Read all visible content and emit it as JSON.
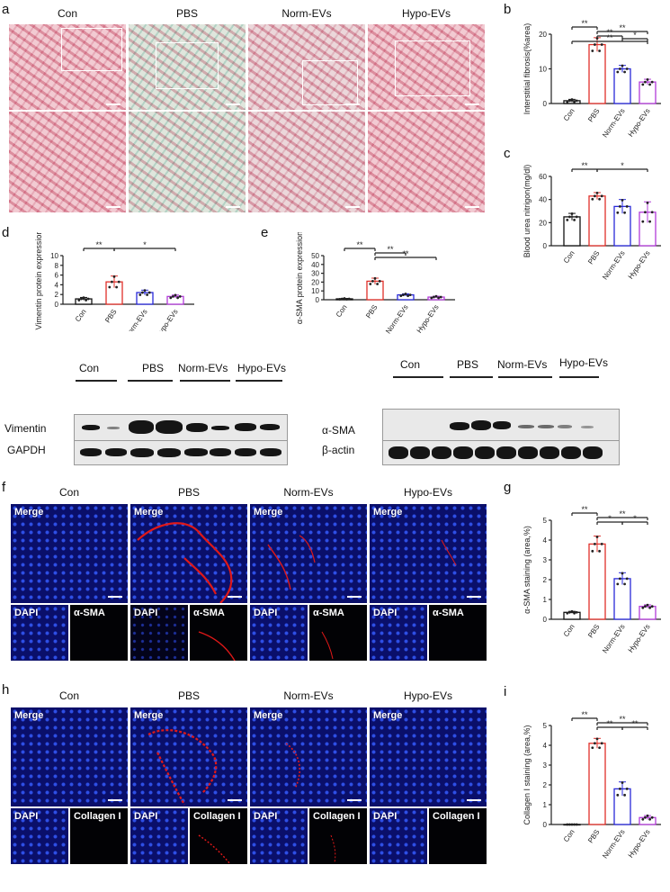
{
  "panel_letters": {
    "a": "a",
    "b": "b",
    "c": "c",
    "d": "d",
    "e": "e",
    "f": "f",
    "g": "g",
    "h": "h",
    "i": "i"
  },
  "groups": [
    "Con",
    "PBS",
    "Norm-EVs",
    "Hypo-EVs"
  ],
  "fluor": {
    "merge": "Merge",
    "dapi": "DAPI",
    "asma": "α-SMA",
    "col": "Collagen I"
  },
  "blot_left": {
    "row1": "Vimentin",
    "row2": "GAPDH"
  },
  "blot_right": {
    "row1": "α-SMA",
    "row2": "β-actin"
  },
  "colors": {
    "con": "#111111",
    "pbs": "#e0302a",
    "norm": "#2a2ad8",
    "hypo": "#b23bd8"
  },
  "chart_data": [
    {
      "id": "b",
      "type": "bar",
      "categories": [
        "Con",
        "PBS",
        "Norm-EVs",
        "Hypo-EVs"
      ],
      "values": [
        0.8,
        17,
        10,
        6.2
      ],
      "errors": [
        0.4,
        2,
        1,
        0.8
      ],
      "ylabel": "Interstitial fibrosis(%area)",
      "ylim": [
        0,
        20
      ],
      "yticks": [
        0,
        10,
        20
      ],
      "sig": [
        "**",
        "**",
        "**",
        "*",
        "**"
      ]
    },
    {
      "id": "c",
      "type": "bar",
      "categories": [
        "Con",
        "PBS",
        "Norm-EVs",
        "Hypo-EVs"
      ],
      "values": [
        25,
        43,
        34,
        29
      ],
      "errors": [
        3,
        3,
        6,
        9
      ],
      "ylabel": "Blood urea nitrigon(mg/dl)",
      "ylim": [
        0,
        60
      ],
      "yticks": [
        0,
        20,
        40,
        60
      ],
      "sig": [
        "**",
        "*"
      ]
    },
    {
      "id": "d",
      "type": "bar",
      "categories": [
        "Con",
        "PBS",
        "Norm-EVs",
        "Hypo-EVs"
      ],
      "values": [
        1.1,
        4.6,
        2.4,
        1.6
      ],
      "errors": [
        0.3,
        1.2,
        0.5,
        0.3
      ],
      "ylabel": "Vimentin protein expression",
      "ylim": [
        0,
        10
      ],
      "yticks": [
        0,
        2,
        4,
        6,
        8,
        10
      ],
      "sig": [
        "**",
        "*"
      ]
    },
    {
      "id": "e",
      "type": "bar",
      "categories": [
        "Con",
        "PBS",
        "Norm-EVs",
        "Hypo-EVs"
      ],
      "values": [
        1,
        21,
        5.5,
        3
      ],
      "errors": [
        0.5,
        3.5,
        1.2,
        1
      ],
      "ylabel": "α-SMA protein expression",
      "ylim": [
        0,
        50
      ],
      "yticks": [
        0,
        10,
        20,
        30,
        40,
        50
      ],
      "sig": [
        "**",
        "**",
        "**"
      ]
    },
    {
      "id": "g",
      "type": "bar",
      "categories": [
        "Con",
        "PBS",
        "Norm-EVs",
        "Hypo-EVs"
      ],
      "values": [
        0.35,
        3.8,
        2.05,
        0.65
      ],
      "errors": [
        0.05,
        0.4,
        0.3,
        0.08
      ],
      "ylabel": "α-SMA staining (area,%)",
      "ylim": [
        0,
        5
      ],
      "yticks": [
        0,
        1,
        2,
        3,
        4,
        5
      ],
      "sig": [
        "**",
        "**",
        "*",
        "*"
      ]
    },
    {
      "id": "i",
      "type": "bar",
      "categories": [
        "Con",
        "PBS",
        "Norm-EVs",
        "Hypo-EVs"
      ],
      "values": [
        0,
        4.1,
        1.8,
        0.35
      ],
      "errors": [
        0,
        0.25,
        0.35,
        0.1
      ],
      "ylabel": "Collagen I staining (area,%)",
      "ylim": [
        0,
        5
      ],
      "yticks": [
        0,
        1,
        2,
        3,
        4,
        5
      ],
      "sig": [
        "**",
        "**",
        "**",
        "**"
      ]
    }
  ]
}
